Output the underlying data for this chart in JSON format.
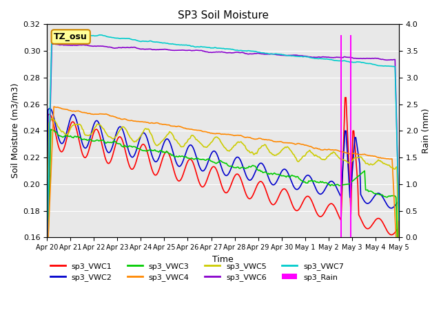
{
  "title": "SP3 Soil Moisture",
  "xlabel": "Time",
  "ylabel_left": "Soil Moisture (m3/m3)",
  "ylabel_right": "Rain (mm)",
  "ylim_left": [
    0.16,
    0.32
  ],
  "ylim_right": [
    0.0,
    4.0
  ],
  "background_color": "#e8e8e8",
  "fig_background": "#ffffff",
  "annotation_text": "TZ_osu",
  "annotation_box_color": "#ffff99",
  "annotation_box_edge": "#cc8800",
  "series_colors": {
    "sp3_VWC1": "#ff0000",
    "sp3_VWC2": "#0000cc",
    "sp3_VWC3": "#00cc00",
    "sp3_VWC4": "#ff8800",
    "sp3_VWC5": "#cccc00",
    "sp3_VWC6": "#8800cc",
    "sp3_VWC7": "#00cccc",
    "sp3_Rain": "#ff00ff"
  },
  "x_tick_labels": [
    "Apr 20",
    "Apr 21",
    "Apr 22",
    "Apr 23",
    "Apr 24",
    "Apr 25",
    "Apr 26",
    "Apr 27",
    "Apr 28",
    "Apr 29",
    "Apr 30",
    "May 1",
    "May 2",
    "May 3",
    "May 4",
    "May 5"
  ],
  "n_points": 360,
  "rain_event_index": 300,
  "rain_event_index2": 310,
  "rain_amount1": 3.8,
  "rain_amount2": 3.8
}
